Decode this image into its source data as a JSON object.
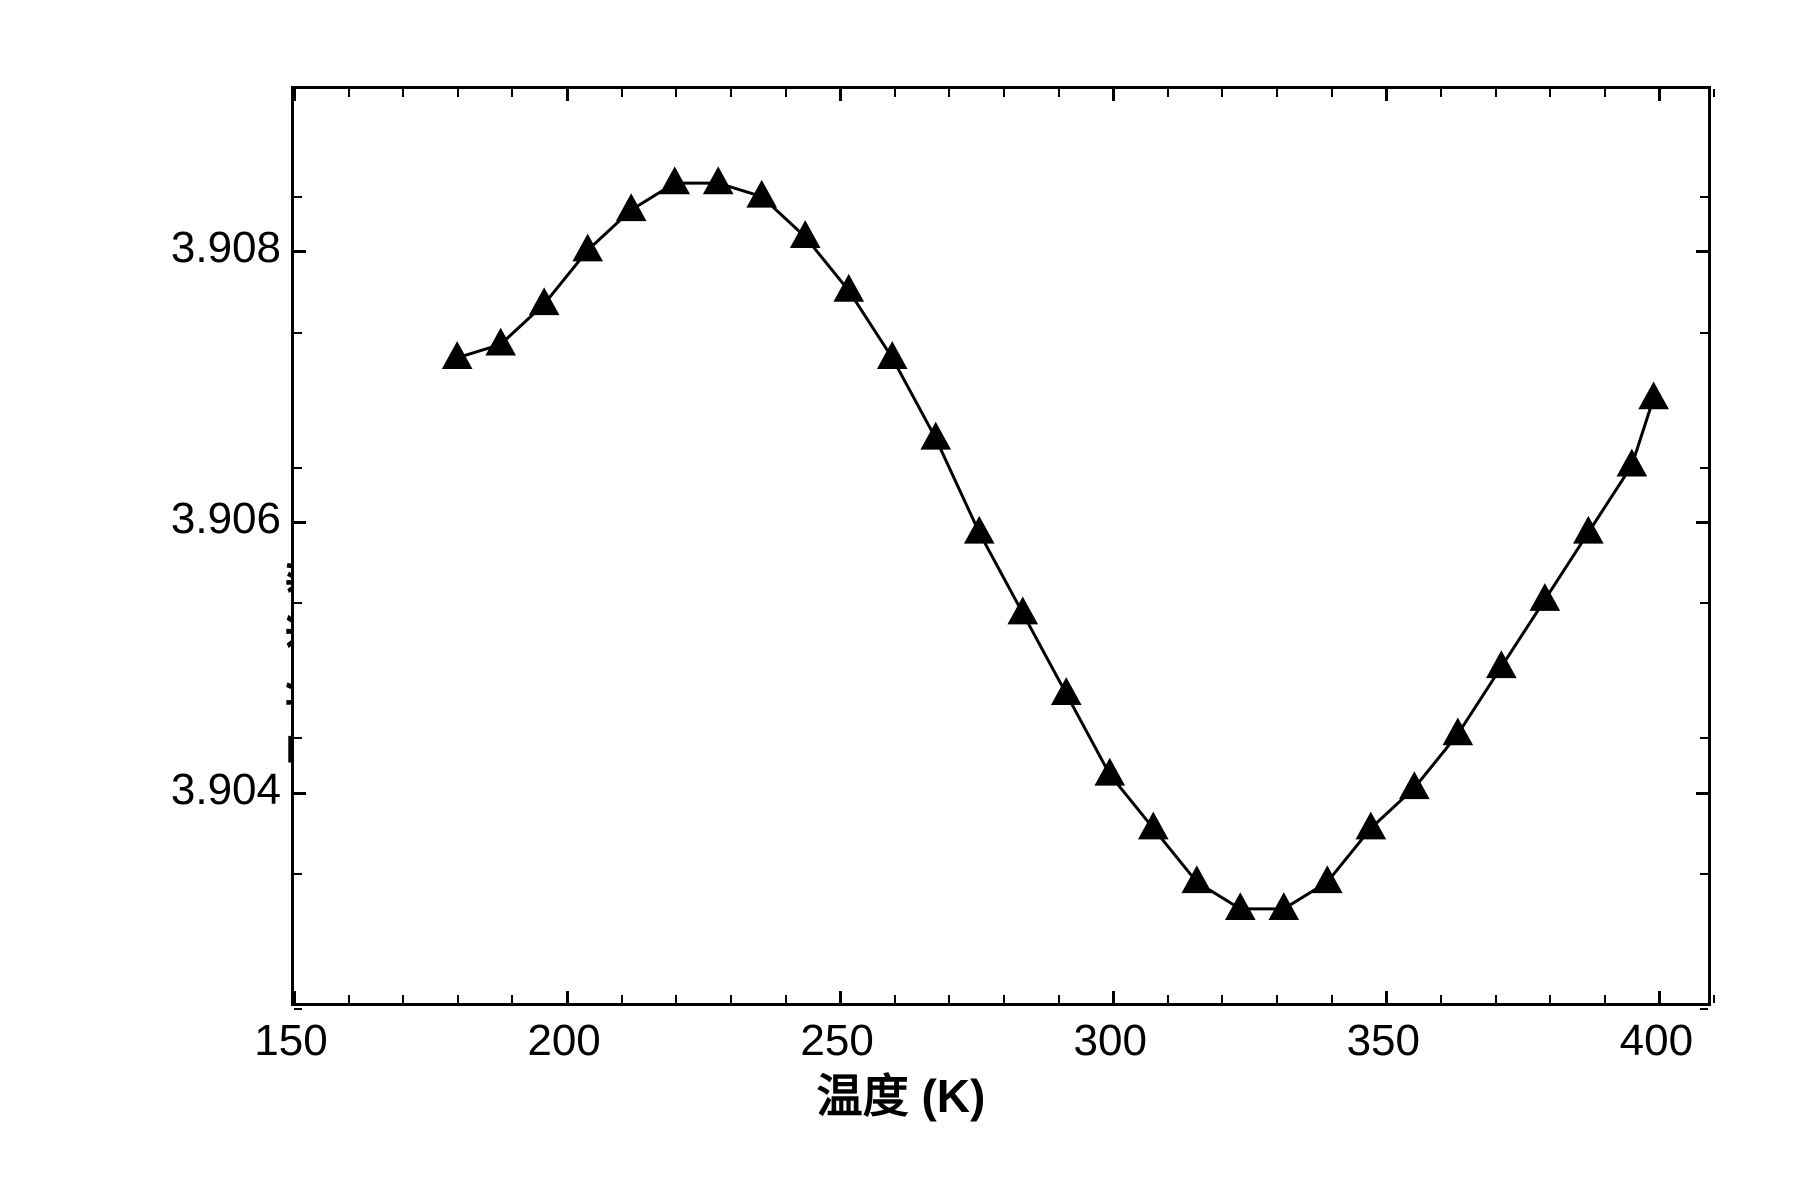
{
  "chart": {
    "type": "line",
    "xlabel": "温度 (K)",
    "ylabel": "晶 格 常 数  (×10⁻¹nm)",
    "xlim": [
      150,
      410
    ],
    "ylim": [
      3.9024,
      3.9092
    ],
    "xticks": [
      150,
      200,
      250,
      300,
      350,
      400
    ],
    "yticks": [
      3.904,
      3.906,
      3.908
    ],
    "xtick_minor_step": 10,
    "ytick_minor_step": 0.001,
    "background_color": "#ffffff",
    "border_color": "#000000",
    "border_width": 3,
    "title_fontsize": 46,
    "tick_fontsize": 44,
    "series": {
      "line_color": "#000000",
      "line_width": 3,
      "marker_shape": "triangle",
      "marker_size": 28,
      "marker_fill": "#000000",
      "data": [
        {
          "x": 180,
          "y": 3.9072
        },
        {
          "x": 188,
          "y": 3.9073
        },
        {
          "x": 196,
          "y": 3.9076
        },
        {
          "x": 204,
          "y": 3.908
        },
        {
          "x": 212,
          "y": 3.9083
        },
        {
          "x": 220,
          "y": 3.9085
        },
        {
          "x": 228,
          "y": 3.9085
        },
        {
          "x": 236,
          "y": 3.9084
        },
        {
          "x": 244,
          "y": 3.9081
        },
        {
          "x": 252,
          "y": 3.9077
        },
        {
          "x": 260,
          "y": 3.9072
        },
        {
          "x": 268,
          "y": 3.9066
        },
        {
          "x": 276,
          "y": 3.9059
        },
        {
          "x": 284,
          "y": 3.9053
        },
        {
          "x": 292,
          "y": 3.9047
        },
        {
          "x": 300,
          "y": 3.9041
        },
        {
          "x": 308,
          "y": 3.9037
        },
        {
          "x": 316,
          "y": 3.9033
        },
        {
          "x": 324,
          "y": 3.9031
        },
        {
          "x": 332,
          "y": 3.9031
        },
        {
          "x": 340,
          "y": 3.9033
        },
        {
          "x": 348,
          "y": 3.9037
        },
        {
          "x": 356,
          "y": 3.904
        },
        {
          "x": 364,
          "y": 3.9044
        },
        {
          "x": 372,
          "y": 3.9049
        },
        {
          "x": 380,
          "y": 3.9054
        },
        {
          "x": 388,
          "y": 3.9059
        },
        {
          "x": 396,
          "y": 3.9064
        },
        {
          "x": 400,
          "y": 3.9069
        }
      ]
    }
  }
}
